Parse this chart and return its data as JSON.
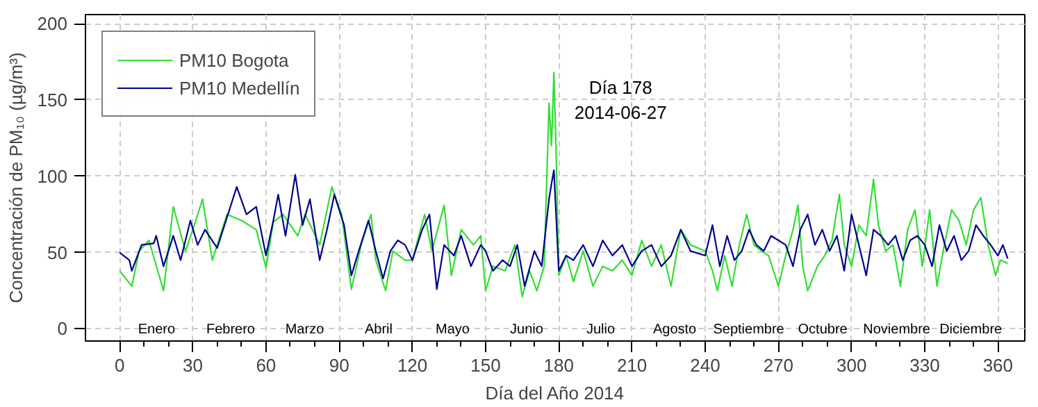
{
  "chart_data": {
    "type": "line",
    "xlabel": "Día del Año 2014",
    "ylabel": "Concentración de PM₁₀ (µg/m³)",
    "xlim": [
      -14,
      371
    ],
    "ylim": [
      -8,
      206
    ],
    "xticks": [
      0,
      {
        "value": 10,
        "label": null
      },
      {
        "value": 20,
        "label": null
      },
      30,
      {
        "value": 40,
        "label": null
      },
      {
        "value": 50,
        "label": null
      },
      60,
      {
        "value": 70,
        "label": null
      },
      {
        "value": 80,
        "label": null
      },
      90,
      {
        "value": 100,
        "label": null
      },
      {
        "value": 110,
        "label": null
      },
      120,
      {
        "value": 130,
        "label": null
      },
      {
        "value": 140,
        "label": null
      },
      150,
      {
        "value": 160,
        "label": null
      },
      {
        "value": 170,
        "label": null
      },
      180,
      {
        "value": 190,
        "label": null
      },
      {
        "value": 200,
        "label": null
      },
      210,
      {
        "value": 220,
        "label": null
      },
      {
        "value": 230,
        "label": null
      },
      240,
      {
        "value": 250,
        "label": null
      },
      {
        "value": 260,
        "label": null
      },
      270,
      {
        "value": 280,
        "label": null
      },
      {
        "value": 290,
        "label": null
      },
      300,
      {
        "value": 310,
        "label": null
      },
      {
        "value": 320,
        "label": null
      },
      330,
      {
        "value": 340,
        "label": null
      },
      {
        "value": 350,
        "label": null
      },
      360
    ],
    "yticks": [
      0,
      50,
      100,
      150,
      200
    ],
    "grid": true,
    "legend": "top left",
    "line_style": "solid",
    "annotations": [
      {
        "text": "Día 178\n2014-06-27",
        "x": 178,
        "y": 168
      },
      "Enero",
      "Febrero",
      "Marzo",
      "Abril",
      "Mayo",
      "Junio",
      "Julio",
      "Agosto",
      "Septiembre",
      "Octubre",
      "Noviembre",
      "Diciembre"
    ],
    "series": [
      {
        "name": "PM10 Bogota",
        "color": "#33dd33",
        "x": [
          0,
          5,
          8,
          12,
          18,
          22,
          27,
          30,
          34,
          38,
          44,
          50,
          56,
          60,
          63,
          67,
          73,
          76,
          82,
          87,
          91,
          95,
          99,
          103,
          105,
          109,
          112,
          117,
          120,
          125,
          128,
          133,
          136,
          140,
          145,
          148,
          150,
          153,
          158,
          162,
          165,
          168,
          171,
          174,
          176,
          177,
          178,
          179,
          180,
          183,
          186,
          190,
          194,
          198,
          202,
          206,
          210,
          214,
          218,
          222,
          226,
          230,
          234,
          240,
          243,
          245,
          248,
          251,
          254,
          257,
          260,
          263,
          266,
          270,
          273,
          276,
          278,
          280,
          282,
          286,
          289,
          292,
          295,
          297,
          300,
          303,
          306,
          309,
          311,
          314,
          317,
          320,
          323,
          326,
          329,
          332,
          335,
          338,
          341,
          344,
          347,
          350,
          353,
          356,
          359,
          361,
          364
        ],
        "values": [
          38,
          28,
          51,
          58,
          25,
          80,
          51,
          65,
          85,
          45,
          75,
          71,
          65,
          40,
          70,
          75,
          61,
          75,
          55,
          93,
          75,
          26,
          55,
          75,
          45,
          25,
          51,
          45,
          45,
          75,
          51,
          81,
          35,
          65,
          55,
          61,
          25,
          41,
          38,
          55,
          21,
          38,
          25,
          41,
          148,
          120,
          168,
          110,
          35,
          48,
          31,
          51,
          28,
          41,
          38,
          45,
          35,
          58,
          41,
          55,
          28,
          65,
          55,
          51,
          38,
          25,
          48,
          28,
          55,
          75,
          55,
          51,
          48,
          28,
          48,
          65,
          81,
          41,
          25,
          41,
          48,
          58,
          88,
          55,
          41,
          68,
          61,
          98,
          68,
          51,
          55,
          28,
          65,
          78,
          41,
          78,
          28,
          55,
          78,
          71,
          55,
          78,
          86,
          55,
          35,
          45,
          43
        ]
      },
      {
        "name": "PM10 Medellín",
        "color": "#00008b",
        "x": [
          0,
          4,
          5,
          9,
          14,
          15,
          18,
          22,
          25,
          29,
          32,
          35,
          40,
          45,
          48,
          52,
          56,
          60,
          63,
          65,
          68,
          72,
          75,
          78,
          82,
          85,
          88,
          92,
          95,
          98,
          102,
          105,
          108,
          111,
          114,
          117,
          120,
          124,
          127,
          130,
          133,
          137,
          140,
          144,
          148,
          150,
          153,
          157,
          160,
          163,
          166,
          170,
          173,
          176,
          177,
          178,
          180,
          183,
          186,
          190,
          194,
          198,
          202,
          206,
          210,
          214,
          218,
          222,
          226,
          230,
          234,
          240,
          243,
          246,
          249,
          252,
          255,
          258,
          261,
          264,
          267,
          270,
          273,
          276,
          279,
          282,
          285,
          288,
          291,
          294,
          297,
          300,
          303,
          306,
          309,
          312,
          315,
          318,
          321,
          324,
          327,
          330,
          333,
          336,
          339,
          342,
          345,
          348,
          351,
          354,
          357,
          360,
          362,
          364
        ],
        "values": [
          50,
          45,
          38,
          55,
          56,
          61,
          41,
          61,
          45,
          71,
          55,
          65,
          53,
          78,
          93,
          75,
          80,
          48,
          71,
          88,
          61,
          101,
          68,
          85,
          45,
          65,
          88,
          68,
          35,
          51,
          71,
          51,
          33,
          51,
          58,
          55,
          45,
          65,
          75,
          26,
          55,
          48,
          61,
          41,
          55,
          51,
          38,
          45,
          41,
          55,
          28,
          51,
          41,
          85,
          95,
          104,
          38,
          48,
          45,
          55,
          41,
          58,
          48,
          55,
          41,
          51,
          55,
          41,
          48,
          65,
          51,
          48,
          68,
          41,
          61,
          45,
          51,
          65,
          55,
          51,
          61,
          58,
          55,
          41,
          65,
          75,
          55,
          65,
          51,
          61,
          38,
          75,
          55,
          35,
          65,
          61,
          55,
          61,
          45,
          58,
          61,
          55,
          41,
          68,
          51,
          61,
          45,
          51,
          68,
          61,
          55,
          48,
          55,
          46
        ]
      }
    ]
  }
}
